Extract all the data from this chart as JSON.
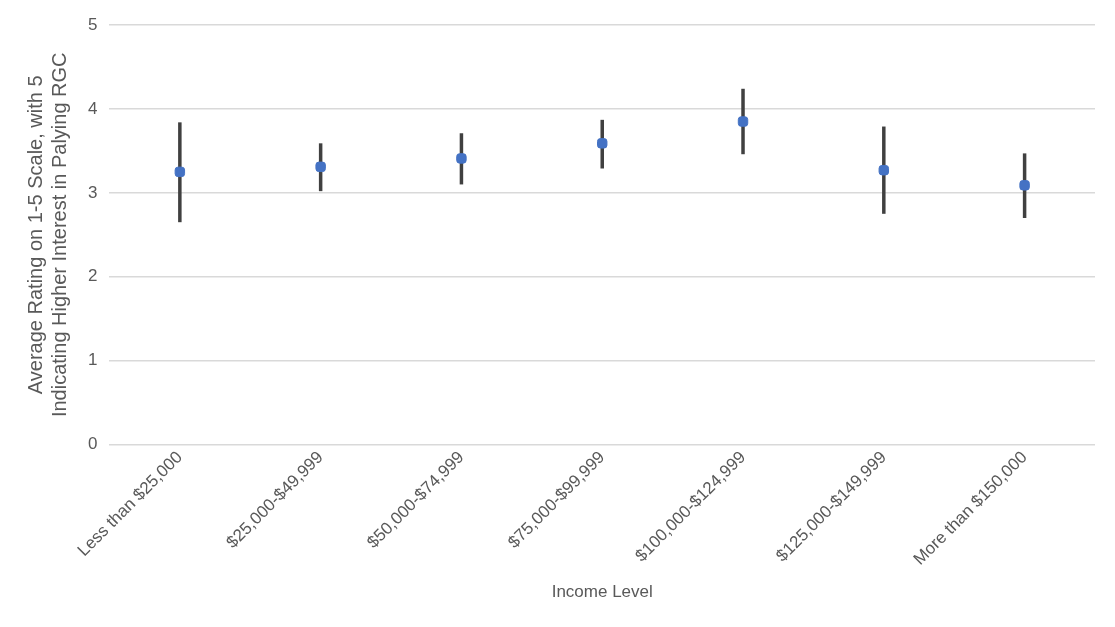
{
  "chart_data": {
    "type": "scatter",
    "xlabel": "Income Level",
    "ylabel": "Average Rating on 1-5 Scale, with 5 Indicating Higher Interest in Palying RGC",
    "categories": [
      "Less than $25,000",
      "$25,000-$49,999",
      "$50,000-$74,999",
      "$75,000-$99,999",
      "$100,000-$124,999",
      "$125,000-$149,999",
      "More than $150,000"
    ],
    "series": [
      {
        "color": "#4472c4",
        "values": [
          3.25,
          3.31,
          3.41,
          3.59,
          3.85,
          3.27,
          3.09
        ],
        "errors": [
          [
            2.65,
            3.84
          ],
          [
            3.02,
            3.59
          ],
          [
            3.1,
            3.71
          ],
          [
            3.29,
            3.87
          ],
          [
            3.46,
            4.24
          ],
          [
            2.75,
            3.79
          ],
          [
            2.7,
            3.47
          ]
        ]
      }
    ],
    "ylim": [
      0,
      5
    ],
    "yticks": [
      0,
      1,
      2,
      3,
      4,
      5
    ],
    "grid": "y",
    "legend": false,
    "marker": "square"
  }
}
